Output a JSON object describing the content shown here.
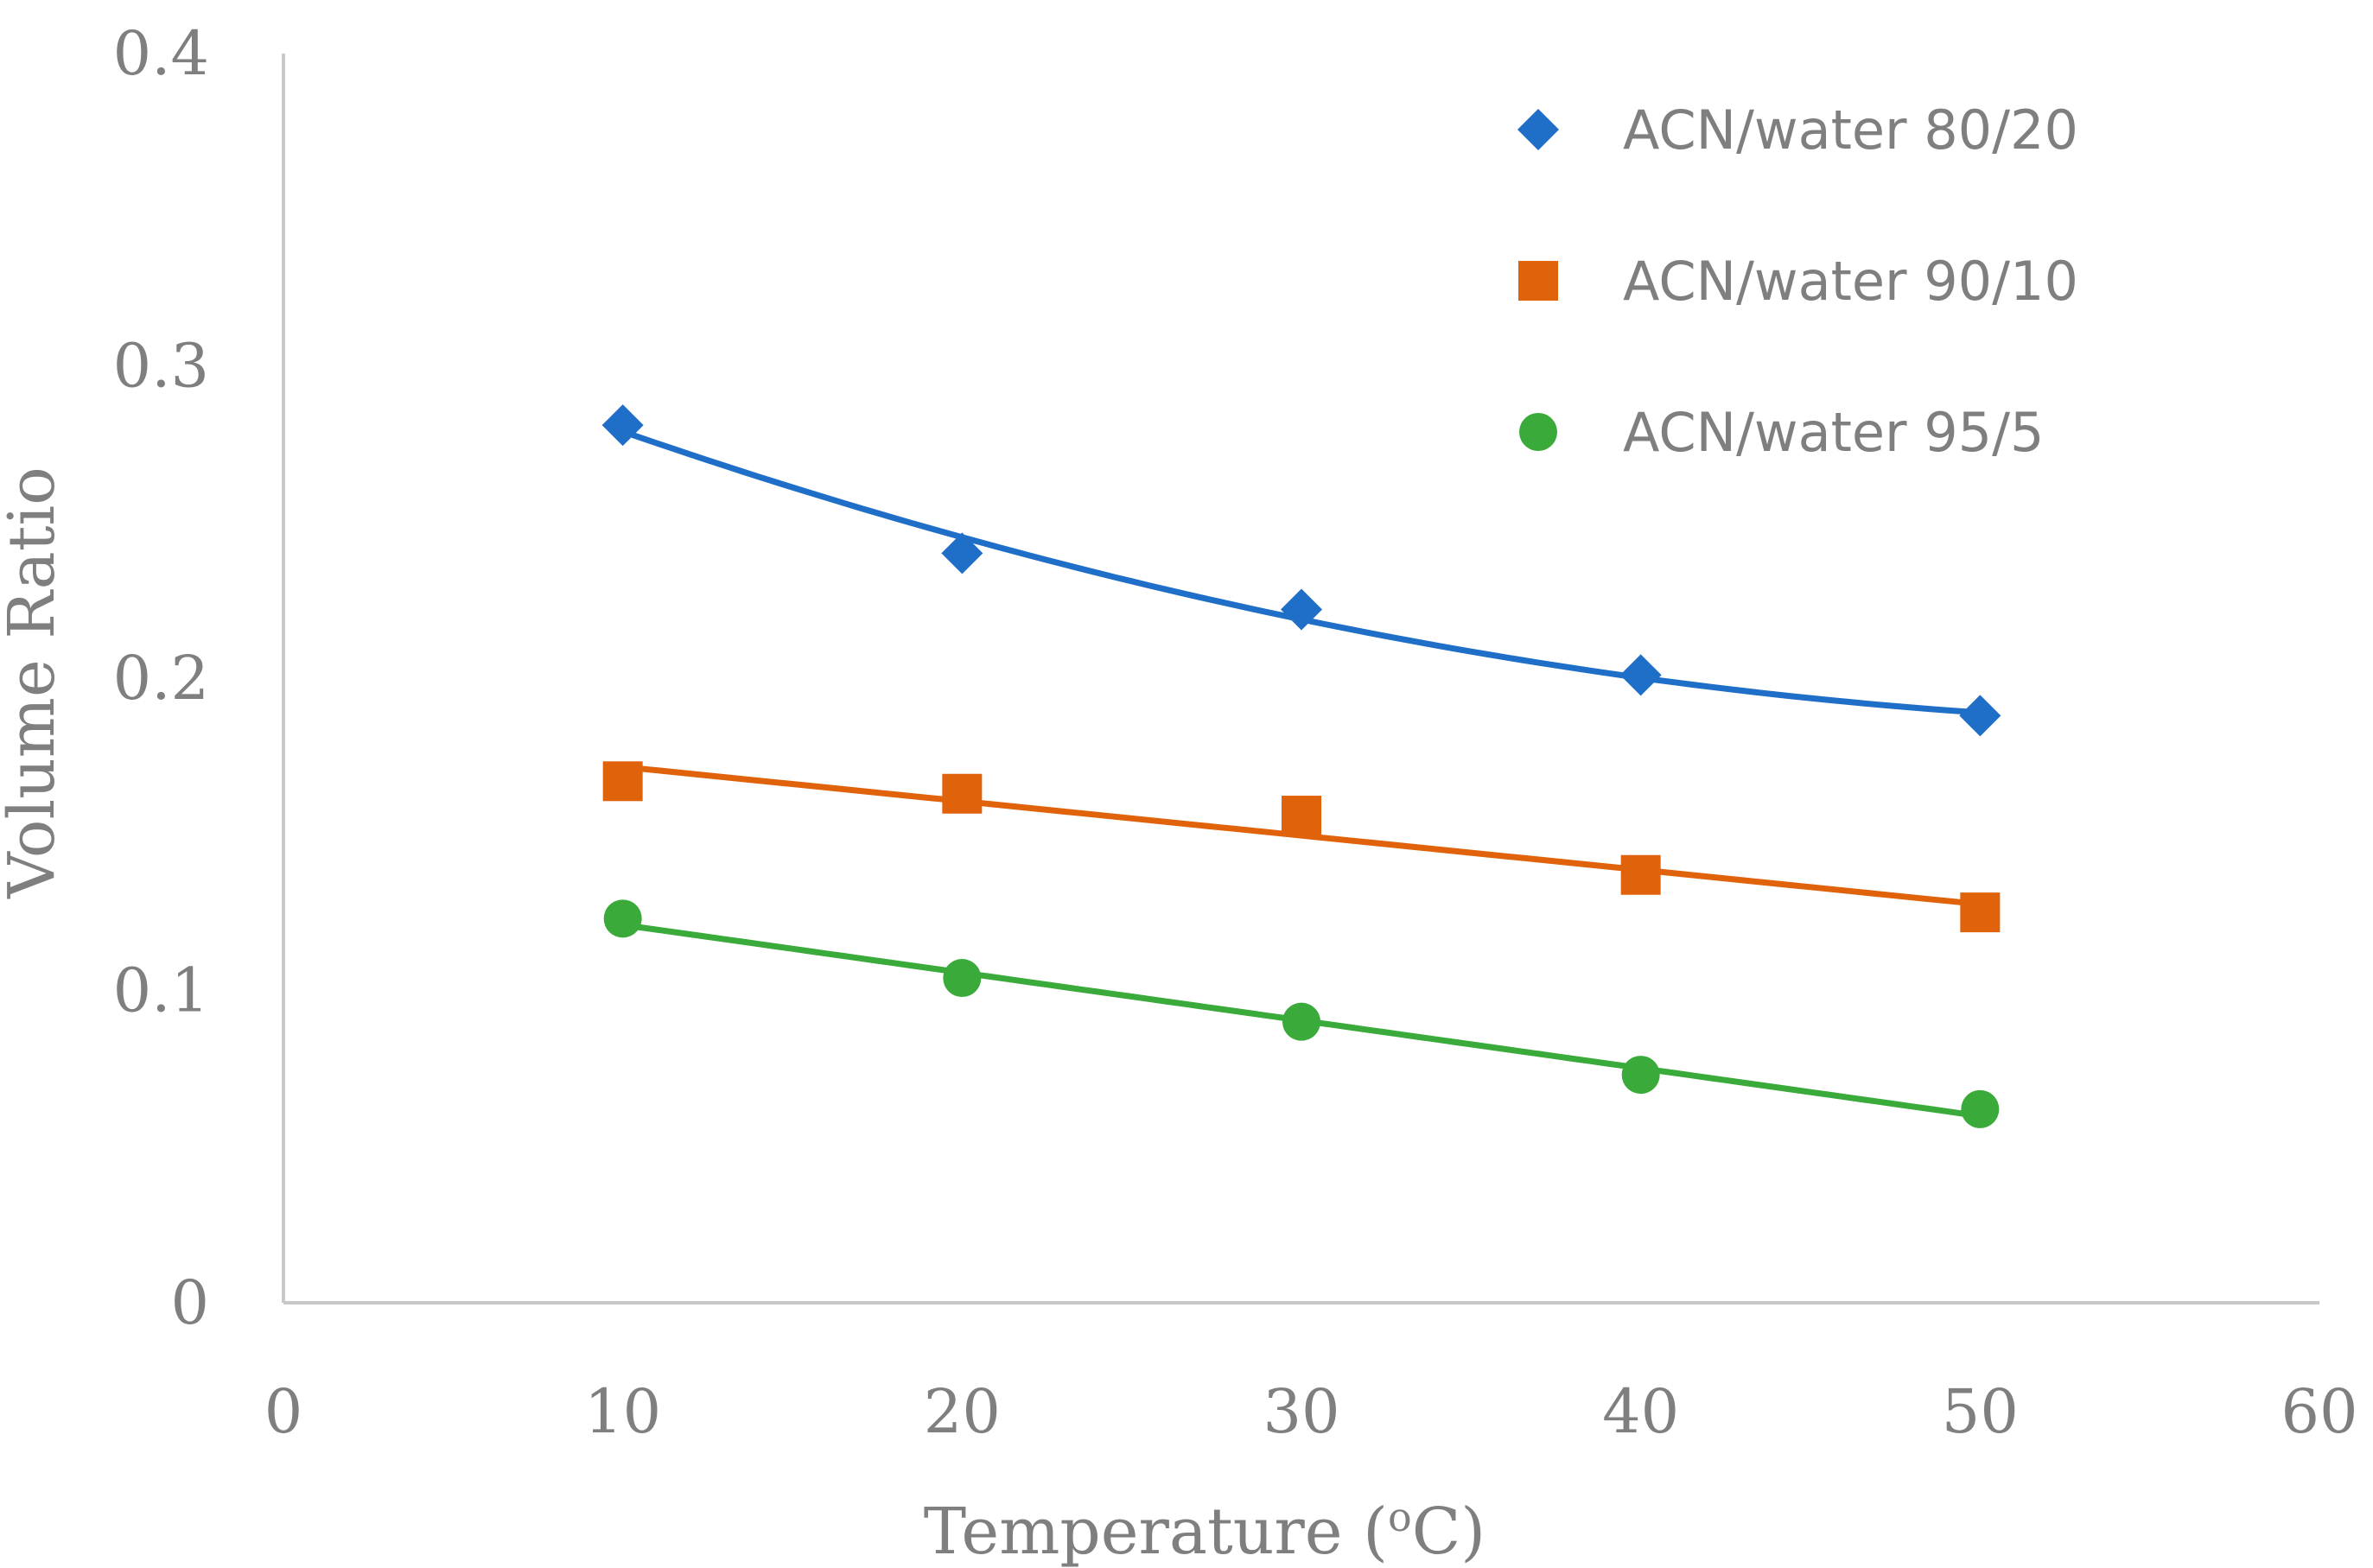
{
  "chart_data": {
    "type": "scatter",
    "title": "",
    "xlabel": "Temperature (",
    "xlabel_sup": "o",
    "xlabel_unit": "C)",
    "ylabel": "Volume Ratio",
    "xlim": [
      0,
      60
    ],
    "ylim": [
      0,
      0.4
    ],
    "xticks": [
      0,
      10,
      20,
      30,
      40,
      50,
      60
    ],
    "yticks": [
      0,
      0.1,
      0.2,
      0.3,
      0.4
    ],
    "xtick_labels": [
      "0",
      "10",
      "20",
      "30",
      "40",
      "50",
      "60"
    ],
    "ytick_labels": [
      "0",
      "0.1",
      "0.2",
      "0.3",
      "0.4"
    ],
    "grid": false,
    "legend_position": "top-right",
    "series": [
      {
        "name": "ACN/water 80/20",
        "marker": "diamond",
        "color": "#1f6fc8",
        "trendline": "polynomial",
        "x": [
          10,
          20,
          30,
          40,
          50
        ],
        "y": [
          0.281,
          0.24,
          0.222,
          0.201,
          0.188
        ]
      },
      {
        "name": "ACN/water 90/10",
        "marker": "square",
        "color": "#e0620a",
        "trendline": "linear",
        "x": [
          10,
          20,
          30,
          40,
          50
        ],
        "y": [
          0.167,
          0.163,
          0.156,
          0.137,
          0.125
        ]
      },
      {
        "name": "ACN/water 95/5",
        "marker": "circle",
        "color": "#3aaa3a",
        "trendline": "linear",
        "x": [
          10,
          20,
          30,
          40,
          50
        ],
        "y": [
          0.123,
          0.104,
          0.09,
          0.073,
          0.062
        ]
      }
    ]
  }
}
